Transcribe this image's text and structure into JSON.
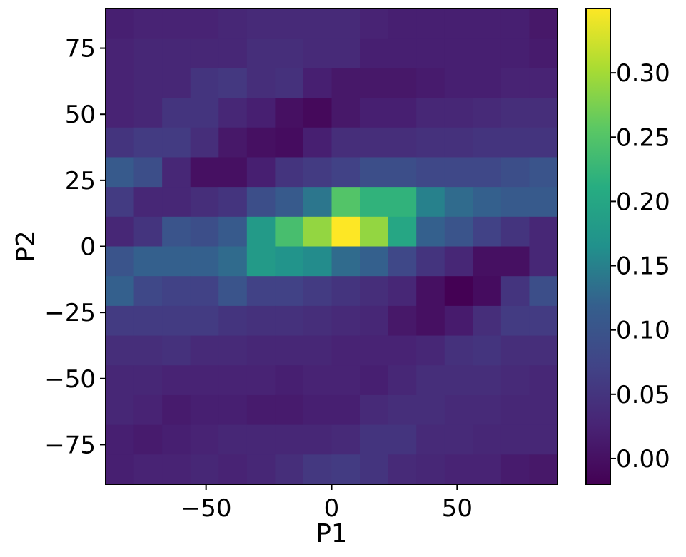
{
  "chart_data": {
    "type": "heatmap",
    "title": "",
    "xlabel": "P1",
    "ylabel": "P2",
    "xlim": [
      -90,
      90
    ],
    "ylim": [
      -90,
      90
    ],
    "x_ticks": [
      -50,
      0,
      50
    ],
    "x_tick_labels": [
      "−50",
      "0",
      "50"
    ],
    "y_ticks": [
      -75,
      -50,
      -25,
      0,
      25,
      50,
      75
    ],
    "y_tick_labels": [
      "−75",
      "−50",
      "−25",
      "0",
      "25",
      "50",
      "75"
    ],
    "x_bin_edges": [
      -90,
      -78.75,
      -67.5,
      -56.25,
      -45,
      -33.75,
      -22.5,
      -11.25,
      0,
      11.25,
      22.5,
      33.75,
      45,
      56.25,
      67.5,
      78.75,
      90
    ],
    "y_bin_edges": [
      -90,
      -78.75,
      -67.5,
      -56.25,
      -45,
      -33.75,
      -22.5,
      -11.25,
      0,
      11.25,
      22.5,
      33.75,
      45,
      56.25,
      67.5,
      78.75,
      90
    ],
    "values_top_to_bottom": [
      [
        0.02,
        0.025,
        0.025,
        0.025,
        0.03,
        0.035,
        0.035,
        0.035,
        0.035,
        0.025,
        0.02,
        0.02,
        0.02,
        0.02,
        0.02,
        0.01
      ],
      [
        0.025,
        0.03,
        0.03,
        0.03,
        0.03,
        0.04,
        0.04,
        0.035,
        0.035,
        0.02,
        0.02,
        0.02,
        0.02,
        0.02,
        0.02,
        0.015
      ],
      [
        0.025,
        0.03,
        0.03,
        0.05,
        0.055,
        0.04,
        0.045,
        0.02,
        0.01,
        0.01,
        0.01,
        0.015,
        0.02,
        0.02,
        0.025,
        0.025
      ],
      [
        0.025,
        0.03,
        0.05,
        0.05,
        0.03,
        0.02,
        0.0,
        -0.01,
        0.01,
        0.02,
        0.02,
        0.03,
        0.03,
        0.035,
        0.04,
        0.04
      ],
      [
        0.05,
        0.06,
        0.06,
        0.04,
        0.01,
        0.0,
        -0.005,
        0.02,
        0.04,
        0.04,
        0.04,
        0.045,
        0.045,
        0.05,
        0.05,
        0.05
      ],
      [
        0.11,
        0.09,
        0.03,
        0.0,
        0.0,
        0.02,
        0.05,
        0.06,
        0.07,
        0.09,
        0.09,
        0.08,
        0.08,
        0.08,
        0.09,
        0.1
      ],
      [
        0.06,
        0.03,
        0.03,
        0.04,
        0.05,
        0.09,
        0.11,
        0.14,
        0.25,
        0.22,
        0.22,
        0.15,
        0.13,
        0.12,
        0.11,
        0.11
      ],
      [
        0.03,
        0.05,
        0.1,
        0.09,
        0.11,
        0.18,
        0.24,
        0.29,
        0.35,
        0.29,
        0.2,
        0.12,
        0.1,
        0.07,
        0.05,
        0.03
      ],
      [
        0.1,
        0.12,
        0.12,
        0.12,
        0.13,
        0.18,
        0.17,
        0.16,
        0.13,
        0.12,
        0.08,
        0.05,
        0.03,
        0.0,
        0.0,
        0.03
      ],
      [
        0.12,
        0.08,
        0.07,
        0.07,
        0.1,
        0.07,
        0.07,
        0.06,
        0.05,
        0.04,
        0.03,
        0.0,
        -0.02,
        -0.005,
        0.05,
        0.09
      ],
      [
        0.06,
        0.06,
        0.06,
        0.06,
        0.05,
        0.045,
        0.045,
        0.04,
        0.035,
        0.03,
        0.01,
        0.0,
        0.015,
        0.04,
        0.06,
        0.06
      ],
      [
        0.04,
        0.04,
        0.045,
        0.035,
        0.035,
        0.03,
        0.03,
        0.03,
        0.025,
        0.025,
        0.025,
        0.03,
        0.045,
        0.05,
        0.04,
        0.04
      ],
      [
        0.03,
        0.03,
        0.025,
        0.025,
        0.025,
        0.025,
        0.02,
        0.025,
        0.025,
        0.02,
        0.03,
        0.04,
        0.04,
        0.04,
        0.035,
        0.03
      ],
      [
        0.03,
        0.025,
        0.015,
        0.02,
        0.02,
        0.015,
        0.015,
        0.02,
        0.02,
        0.035,
        0.04,
        0.04,
        0.035,
        0.035,
        0.03,
        0.03
      ],
      [
        0.02,
        0.015,
        0.02,
        0.025,
        0.03,
        0.03,
        0.03,
        0.03,
        0.035,
        0.05,
        0.05,
        0.035,
        0.035,
        0.03,
        0.03,
        0.03
      ],
      [
        0.02,
        0.025,
        0.025,
        0.03,
        0.025,
        0.03,
        0.04,
        0.055,
        0.06,
        0.05,
        0.035,
        0.03,
        0.025,
        0.025,
        0.015,
        0.01
      ]
    ],
    "colormap": "viridis",
    "colorbar": {
      "min": -0.02,
      "max": 0.35,
      "ticks": [
        0.0,
        0.05,
        0.1,
        0.15,
        0.2,
        0.25,
        0.3
      ],
      "tick_labels": [
        "0.00",
        "0.05",
        "0.10",
        "0.15",
        "0.20",
        "0.25",
        "0.30"
      ]
    },
    "grid": false,
    "legend": "none"
  }
}
